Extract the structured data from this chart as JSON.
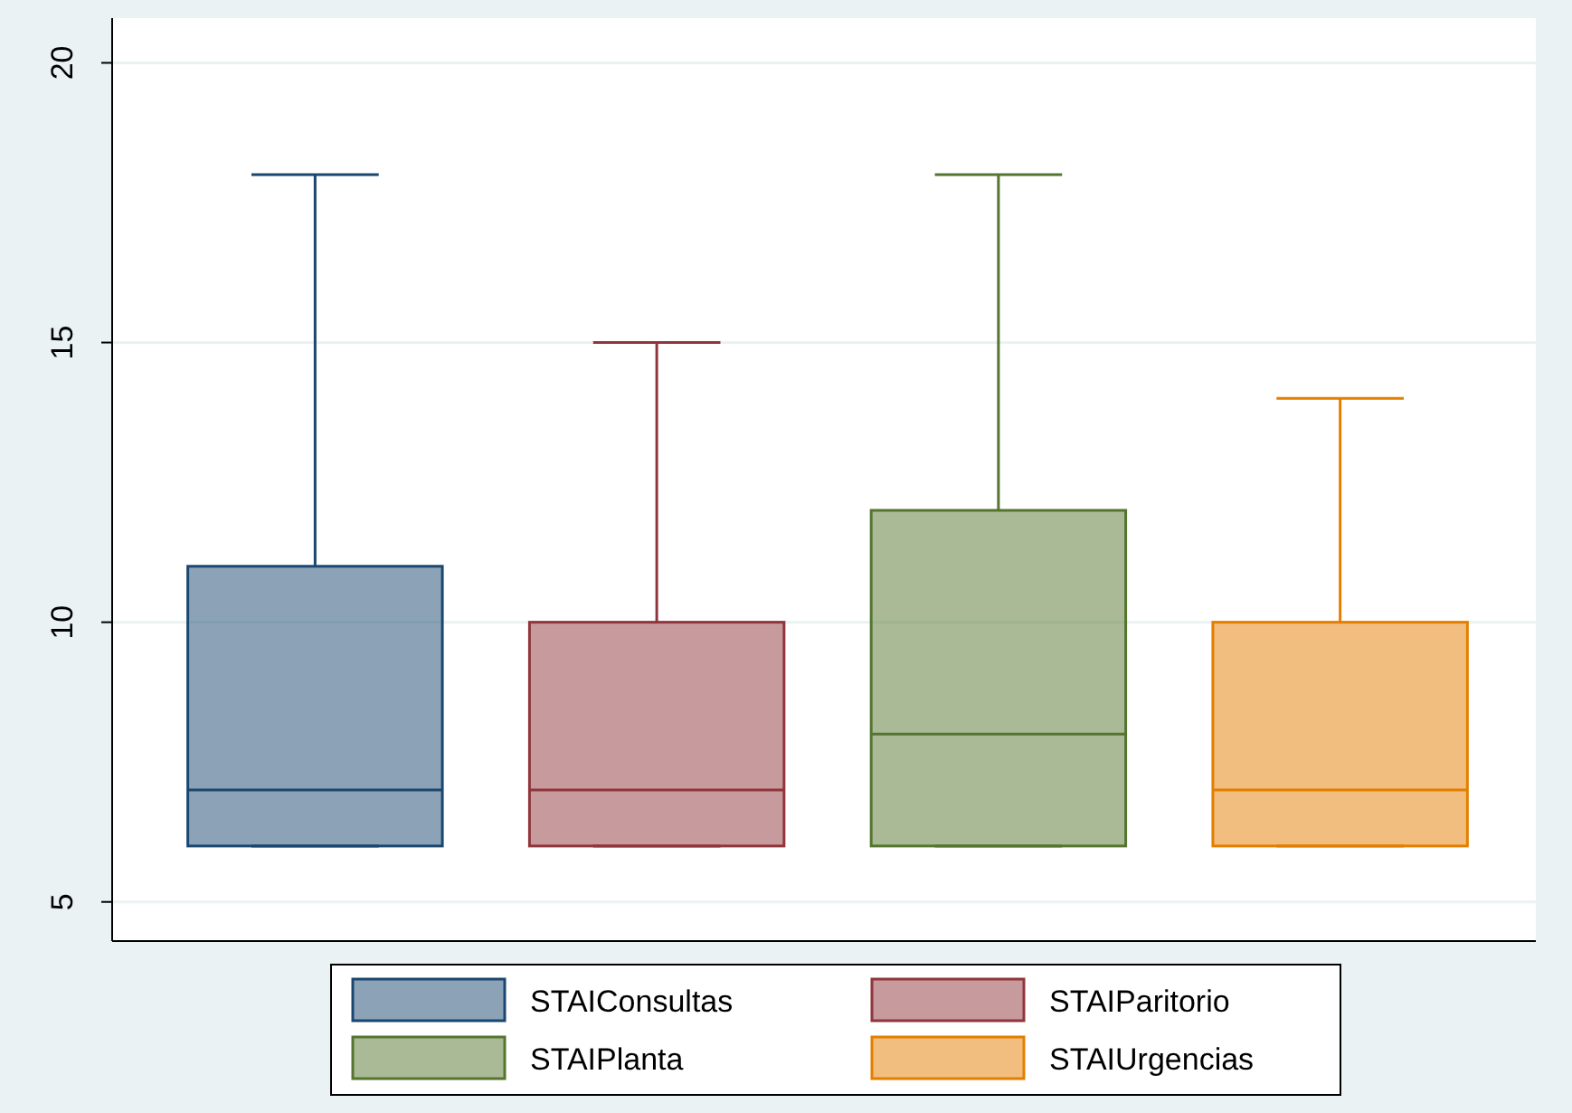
{
  "chart_data": {
    "type": "box",
    "categories": [
      null
    ],
    "ylim": [
      4.3,
      20.8
    ],
    "yticks": [
      5,
      10,
      15,
      20
    ],
    "grid": "y",
    "legend": "bottom",
    "series": [
      {
        "name": "STAIConsultas",
        "color": "#1a476f",
        "boxes": [
          {
            "low": 6,
            "q1": 6,
            "median": 7,
            "q3": 11,
            "high": 18
          }
        ]
      },
      {
        "name": "STAIParitorio",
        "color": "#90353b",
        "boxes": [
          {
            "low": 6,
            "q1": 6,
            "median": 7,
            "q3": 10,
            "high": 15
          }
        ]
      },
      {
        "name": "STAIPlanta",
        "color": "#55752f",
        "boxes": [
          {
            "low": 6,
            "q1": 6,
            "median": 8,
            "q3": 12,
            "high": 18
          }
        ]
      },
      {
        "name": "STAIUrgencias",
        "color": "#e37e00",
        "boxes": [
          {
            "low": 6,
            "q1": 6,
            "median": 7,
            "q3": 10,
            "high": 14
          }
        ]
      }
    ]
  }
}
